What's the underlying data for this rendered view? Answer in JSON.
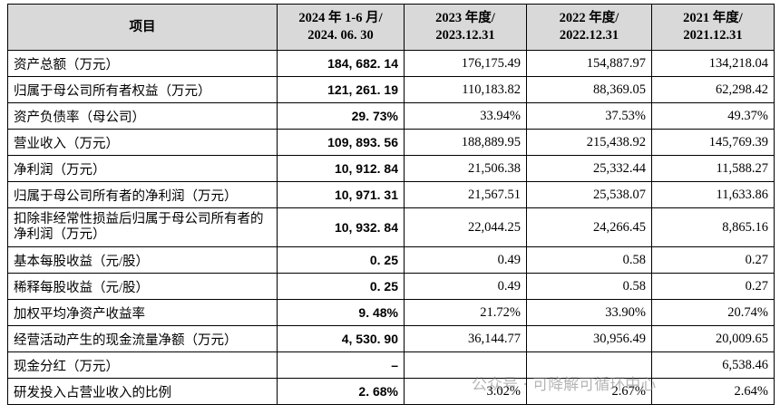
{
  "table": {
    "header": [
      "项目",
      "2024 年 1-6 月/\n2024. 06. 30",
      "2023 年度/\n2023.12.31",
      "2022 年度/\n2022.12.31",
      "2021 年度/\n2021.12.31"
    ],
    "rows": [
      [
        "资产总额（万元）",
        "184, 682. 14",
        "176,175.49",
        "154,887.97",
        "134,218.04"
      ],
      [
        "归属于母公司所有者权益（万元）",
        "121, 261. 19",
        "110,183.82",
        "88,369.05",
        "62,298.42"
      ],
      [
        "资产负债率（母公司）",
        "29. 73%",
        "33.94%",
        "37.53%",
        "49.37%"
      ],
      [
        "营业收入（万元）",
        "109, 893. 56",
        "188,889.95",
        "215,438.92",
        "145,769.39"
      ],
      [
        "净利润（万元）",
        "10, 912. 84",
        "21,506.38",
        "25,332.44",
        "11,588.27"
      ],
      [
        "归属于母公司所有者的净利润（万元）",
        "10, 971. 31",
        "21,567.51",
        "25,538.07",
        "11,633.86"
      ],
      [
        "扣除非经常性损益后归属于母公司所有者的净利润（万元）",
        "10, 932. 84",
        "22,044.25",
        "24,266.45",
        "8,865.16"
      ],
      [
        "基本每股收益（元/股）",
        "0. 25",
        "0.49",
        "0.58",
        "0.27"
      ],
      [
        "稀释每股收益（元/股）",
        "0. 25",
        "0.49",
        "0.58",
        "0.27"
      ],
      [
        "加权平均净资产收益率",
        "9. 48%",
        "21.72%",
        "33.90%",
        "20.74%"
      ],
      [
        "经营活动产生的现金流量净额（万元）",
        "4, 530. 90",
        "36,144.77",
        "30,956.49",
        "20,009.65"
      ],
      [
        "现金分红（万元）",
        "–",
        null,
        null,
        "6,538.46"
      ],
      [
        "研发投入占营业收入的比例",
        "2. 68%",
        "3.02%",
        "2.67%",
        "2.64%"
      ]
    ]
  },
  "watermark": "公众号 · 可降解可循环中心"
}
